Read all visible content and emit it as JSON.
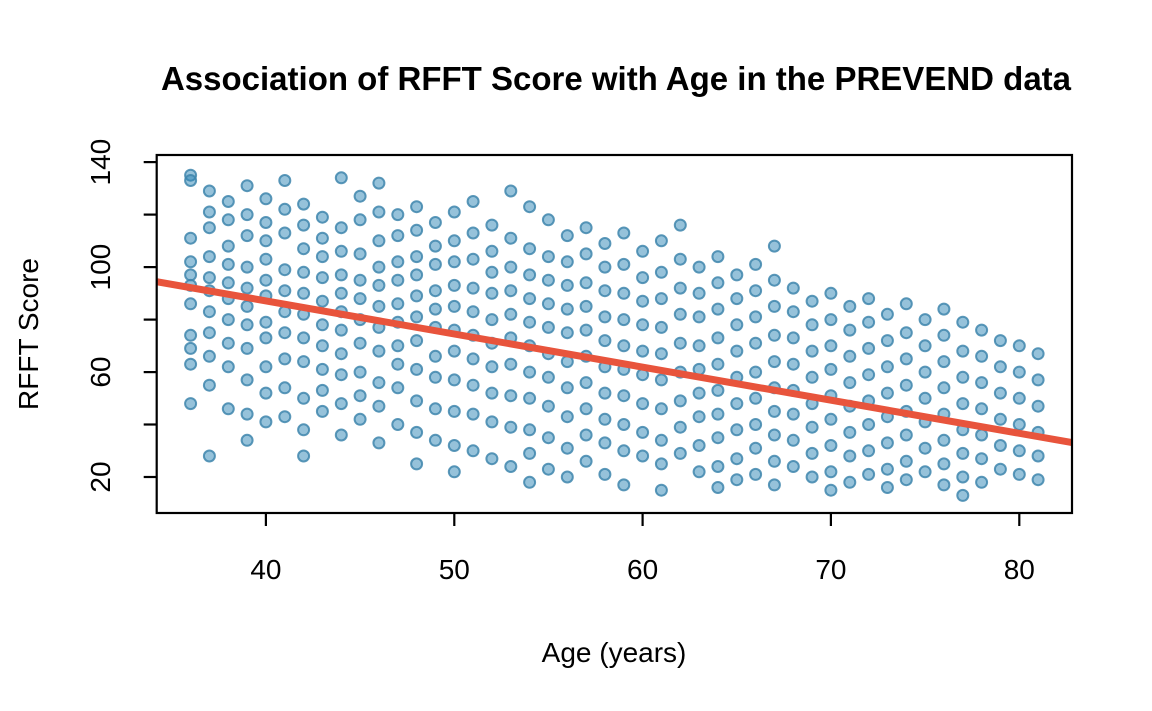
{
  "chart_data": {
    "type": "scatter",
    "title": "Association of RFFT Score with Age in the PREVEND data",
    "xlabel": "Age (years)",
    "ylabel": "RFFT Score",
    "xlim": [
      34.2,
      82.8
    ],
    "ylim": [
      6.3,
      142.7
    ],
    "x_ticks": [
      40,
      50,
      60,
      70,
      80
    ],
    "y_ticks": [
      20,
      40,
      60,
      80,
      100,
      120,
      140
    ],
    "y_labeled_ticks": [
      20,
      60,
      100,
      140
    ],
    "grid": false,
    "legend": null,
    "colors": {
      "point_fill": "#2e86b5",
      "point_fill_opacity": 0.5,
      "point_stroke": "#3f86ad",
      "point_stroke_opacity": 0.85,
      "trend_line": "#e8543c",
      "axis": "#000000",
      "background": "#ffffff"
    },
    "trendline": {
      "intercept": 137.55,
      "slope": -1.261
    },
    "columns": [
      {
        "age": 36,
        "scores": [
          135,
          133,
          111,
          102,
          97,
          93,
          86,
          74,
          69,
          63,
          48
        ]
      },
      {
        "age": 37,
        "scores": [
          129,
          121,
          115,
          104,
          96,
          91,
          83,
          75,
          66,
          55,
          28
        ]
      },
      {
        "age": 38,
        "scores": [
          125,
          118,
          108,
          101,
          94,
          88,
          80,
          71,
          62,
          46
        ]
      },
      {
        "age": 39,
        "scores": [
          131,
          120,
          112,
          100,
          92,
          85,
          78,
          69,
          57,
          44,
          34
        ]
      },
      {
        "age": 40,
        "scores": [
          126,
          117,
          110,
          103,
          95,
          89,
          79,
          73,
          62,
          52,
          41
        ]
      },
      {
        "age": 41,
        "scores": [
          133,
          122,
          113,
          99,
          91,
          83,
          75,
          65,
          54,
          43
        ]
      },
      {
        "age": 42,
        "scores": [
          124,
          116,
          107,
          98,
          90,
          82,
          73,
          64,
          50,
          38,
          28
        ]
      },
      {
        "age": 43,
        "scores": [
          119,
          111,
          104,
          96,
          87,
          78,
          70,
          61,
          53,
          45
        ]
      },
      {
        "age": 44,
        "scores": [
          134,
          115,
          106,
          97,
          90,
          83,
          76,
          67,
          59,
          48,
          36
        ]
      },
      {
        "age": 45,
        "scores": [
          127,
          118,
          105,
          95,
          88,
          80,
          71,
          60,
          51,
          42
        ]
      },
      {
        "age": 46,
        "scores": [
          132,
          121,
          110,
          100,
          93,
          85,
          77,
          68,
          56,
          47,
          33
        ]
      },
      {
        "age": 47,
        "scores": [
          120,
          112,
          102,
          95,
          86,
          79,
          70,
          63,
          54,
          40
        ]
      },
      {
        "age": 48,
        "scores": [
          123,
          114,
          104,
          97,
          89,
          81,
          72,
          61,
          49,
          37,
          25
        ]
      },
      {
        "age": 49,
        "scores": [
          117,
          108,
          101,
          91,
          84,
          77,
          66,
          58,
          46,
          34
        ]
      },
      {
        "age": 50,
        "scores": [
          121,
          110,
          102,
          93,
          85,
          76,
          68,
          57,
          45,
          32,
          22
        ]
      },
      {
        "age": 51,
        "scores": [
          125,
          113,
          103,
          92,
          83,
          74,
          65,
          55,
          44,
          30
        ]
      },
      {
        "age": 52,
        "scores": [
          116,
          106,
          98,
          90,
          80,
          71,
          62,
          52,
          41,
          27
        ]
      },
      {
        "age": 53,
        "scores": [
          129,
          111,
          100,
          91,
          82,
          73,
          63,
          51,
          39,
          24
        ]
      },
      {
        "age": 54,
        "scores": [
          123,
          107,
          97,
          88,
          79,
          70,
          60,
          50,
          38,
          29,
          18
        ]
      },
      {
        "age": 55,
        "scores": [
          118,
          104,
          95,
          86,
          77,
          67,
          58,
          47,
          35,
          23
        ]
      },
      {
        "age": 56,
        "scores": [
          112,
          102,
          93,
          84,
          75,
          64,
          54,
          43,
          31,
          20
        ]
      },
      {
        "age": 57,
        "scores": [
          115,
          105,
          94,
          85,
          76,
          66,
          56,
          46,
          36,
          26
        ]
      },
      {
        "age": 58,
        "scores": [
          109,
          100,
          91,
          81,
          72,
          62,
          52,
          42,
          33,
          21
        ]
      },
      {
        "age": 59,
        "scores": [
          113,
          101,
          90,
          80,
          70,
          61,
          51,
          40,
          30,
          17
        ]
      },
      {
        "age": 60,
        "scores": [
          106,
          96,
          87,
          78,
          68,
          59,
          48,
          37,
          28
        ]
      },
      {
        "age": 61,
        "scores": [
          110,
          98,
          88,
          77,
          67,
          57,
          46,
          34,
          25,
          15
        ]
      },
      {
        "age": 62,
        "scores": [
          116,
          103,
          92,
          82,
          71,
          60,
          49,
          39,
          29
        ]
      },
      {
        "age": 63,
        "scores": [
          100,
          90,
          81,
          70,
          61,
          52,
          43,
          32,
          22
        ]
      },
      {
        "age": 64,
        "scores": [
          104,
          94,
          84,
          73,
          63,
          53,
          44,
          35,
          24,
          16
        ]
      },
      {
        "age": 65,
        "scores": [
          97,
          88,
          78,
          68,
          58,
          48,
          38,
          27,
          19
        ]
      },
      {
        "age": 66,
        "scores": [
          101,
          91,
          81,
          71,
          60,
          50,
          40,
          31,
          21
        ]
      },
      {
        "age": 67,
        "scores": [
          108,
          95,
          85,
          74,
          64,
          54,
          45,
          36,
          26,
          17
        ]
      },
      {
        "age": 68,
        "scores": [
          92,
          83,
          73,
          63,
          53,
          44,
          34,
          24
        ]
      },
      {
        "age": 69,
        "scores": [
          87,
          78,
          68,
          58,
          48,
          39,
          29,
          20
        ]
      },
      {
        "age": 70,
        "scores": [
          90,
          80,
          70,
          61,
          51,
          42,
          32,
          22,
          15
        ]
      },
      {
        "age": 71,
        "scores": [
          85,
          76,
          66,
          56,
          47,
          37,
          28,
          18
        ]
      },
      {
        "age": 72,
        "scores": [
          88,
          79,
          69,
          59,
          49,
          40,
          30,
          21
        ]
      },
      {
        "age": 73,
        "scores": [
          82,
          72,
          62,
          52,
          43,
          33,
          23,
          16
        ]
      },
      {
        "age": 74,
        "scores": [
          86,
          75,
          65,
          55,
          45,
          36,
          26,
          19
        ]
      },
      {
        "age": 75,
        "scores": [
          80,
          70,
          60,
          50,
          41,
          31,
          22
        ]
      },
      {
        "age": 76,
        "scores": [
          84,
          74,
          64,
          54,
          44,
          34,
          25,
          17
        ]
      },
      {
        "age": 77,
        "scores": [
          79,
          68,
          58,
          48,
          38,
          29,
          20,
          13
        ]
      },
      {
        "age": 78,
        "scores": [
          76,
          66,
          56,
          46,
          36,
          27,
          18
        ]
      },
      {
        "age": 79,
        "scores": [
          72,
          62,
          52,
          42,
          32,
          23
        ]
      },
      {
        "age": 80,
        "scores": [
          70,
          60,
          50,
          40,
          30,
          21
        ]
      },
      {
        "age": 81,
        "scores": [
          67,
          57,
          47,
          37,
          28,
          19
        ]
      }
    ]
  }
}
